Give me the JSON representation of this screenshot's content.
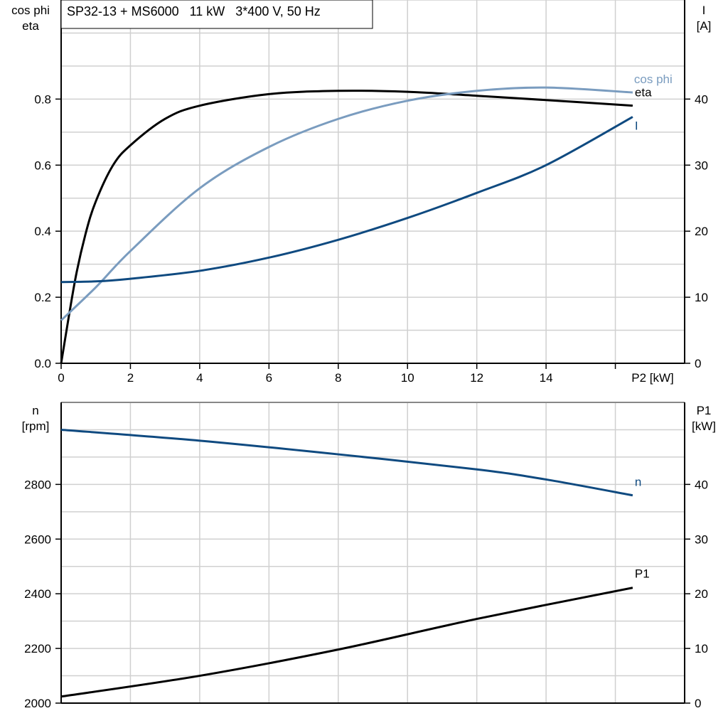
{
  "chart_data": [
    {
      "type": "line",
      "title": "SP32-13 + MS6000   11 kW   3*400 V, 50 Hz",
      "xlabel": "P2 [kW]",
      "ylabel_left": [
        "cos phi",
        "eta"
      ],
      "ylabel_right": [
        "I",
        "[A]"
      ],
      "xlim": [
        0,
        18
      ],
      "ylim_left": [
        0,
        1.1
      ],
      "ylim_right": [
        0,
        55
      ],
      "x_ticks": [
        0,
        2,
        4,
        6,
        8,
        10,
        12,
        14
      ],
      "y_ticks_left": [
        "0.0",
        "0.2",
        "0.4",
        "0.6",
        "0.8"
      ],
      "y_ticks_right": [
        "0",
        "10",
        "20",
        "30",
        "40"
      ],
      "grid": true,
      "series": [
        {
          "name": "eta",
          "axis": "left",
          "color": "#000000",
          "x": [
            0,
            0.4,
            0.7,
            1,
            1.5,
            2,
            3,
            4,
            6,
            8,
            10,
            12,
            14,
            16.5
          ],
          "y": [
            0,
            0.25,
            0.39,
            0.49,
            0.6,
            0.66,
            0.74,
            0.78,
            0.815,
            0.825,
            0.822,
            0.81,
            0.797,
            0.78
          ]
        },
        {
          "name": "cos phi",
          "axis": "left",
          "color": "#7a9cbf",
          "x": [
            0,
            1,
            2,
            4,
            6,
            8,
            10,
            12,
            14,
            16.5
          ],
          "y": [
            0.13,
            0.23,
            0.34,
            0.53,
            0.655,
            0.74,
            0.795,
            0.825,
            0.835,
            0.82
          ]
        },
        {
          "name": "I",
          "axis": "right",
          "color": "#0f4a80",
          "x": [
            0,
            1,
            2,
            4,
            6,
            8,
            10,
            12,
            14,
            16.5
          ],
          "y": [
            12.3,
            12.4,
            12.8,
            14,
            16,
            18.7,
            22,
            25.8,
            30,
            37.3
          ]
        }
      ]
    },
    {
      "type": "line",
      "ylabel_left": [
        "n",
        "[rpm]"
      ],
      "ylabel_right": [
        "P1",
        "[kW]"
      ],
      "xlim": [
        0,
        18
      ],
      "ylim_left": [
        2000,
        3100
      ],
      "ylim_right": [
        0,
        55
      ],
      "y_ticks_left": [
        "2000",
        "2200",
        "2400",
        "2600",
        "2800"
      ],
      "y_ticks_right": [
        "0",
        "10",
        "20",
        "30",
        "40"
      ],
      "grid": true,
      "series": [
        {
          "name": "n",
          "axis": "left",
          "color": "#0f4a80",
          "x": [
            0,
            4,
            8,
            12,
            14,
            16.5
          ],
          "y": [
            3000,
            2960,
            2910,
            2855,
            2818,
            2760
          ]
        },
        {
          "name": "P1",
          "axis": "right",
          "color": "#000000",
          "x": [
            0,
            4,
            8,
            12,
            16.5
          ],
          "y": [
            1.2,
            5.0,
            9.8,
            15.4,
            21.1
          ]
        }
      ]
    }
  ]
}
